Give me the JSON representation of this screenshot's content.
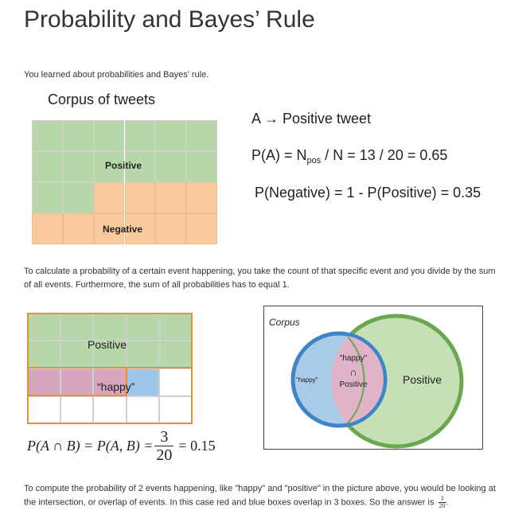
{
  "page": {
    "title": "Probability and Bayes’ Rule",
    "intro": "You learned about probabilities and Bayes' rule.",
    "paragraph1": "To calculate a probability of a certain event happening, you take the count of that specific event and you divide by the sum of all events. Furthermore, the sum of all probabilities has to equal 1.",
    "paragraph2_part1": "To compute the probability of 2 events happening, like \"happy\" and \"positive\" in the picture above, you would be looking at the intersection, or overlap of events. In this case red and blue boxes overlap in 3 boxes. So the answer is",
    "answer_numerator": "3",
    "answer_denominator": "20",
    "answer_suffix": "."
  },
  "corpus_figure": {
    "heading": "Corpus of tweets",
    "positive_label": "Positive",
    "negative_label": "Negative",
    "total_tweets": 20,
    "positive_tweets": 13,
    "colors": {
      "positive": "#b6d7a8",
      "negative": "#f9cb9c"
    }
  },
  "formulas": {
    "event_def": "A → Positive tweet",
    "pa_prefix": "P(A) = N",
    "pa_subscript": "pos",
    "pa_suffix": " / N = 13 / 20 = 0.65",
    "p_negative": "P(Negative) = 1 - P(Positive) = 0.35"
  },
  "intersection_figure": {
    "positive_label": "Positive",
    "happy_label": "“happy”",
    "colors": {
      "positive": "#b6d7a8",
      "happy": "#d5a6bd",
      "happy_only": "#9fc5e8",
      "border": "#e69138"
    },
    "equation_lhs": "P(A ∩ B) = P(A, B) = ",
    "equation_num": "3",
    "equation_den": "20",
    "equation_rhs": "= 0.15"
  },
  "venn_figure": {
    "corpus_label": "Corpus",
    "happy_only_label": "\"happy\"",
    "intersection_happy": "\"happy\"",
    "intersection_symbol": "∩",
    "intersection_positive": "Positive",
    "positive_label": "Positive",
    "colors": {
      "positive_fill": "#c5e0b4",
      "positive_stroke": "#6aa84f",
      "happy_fill": "#aacbe8",
      "happy_stroke": "#3d85c6",
      "overlap_fill": "#e0b3c8"
    }
  }
}
